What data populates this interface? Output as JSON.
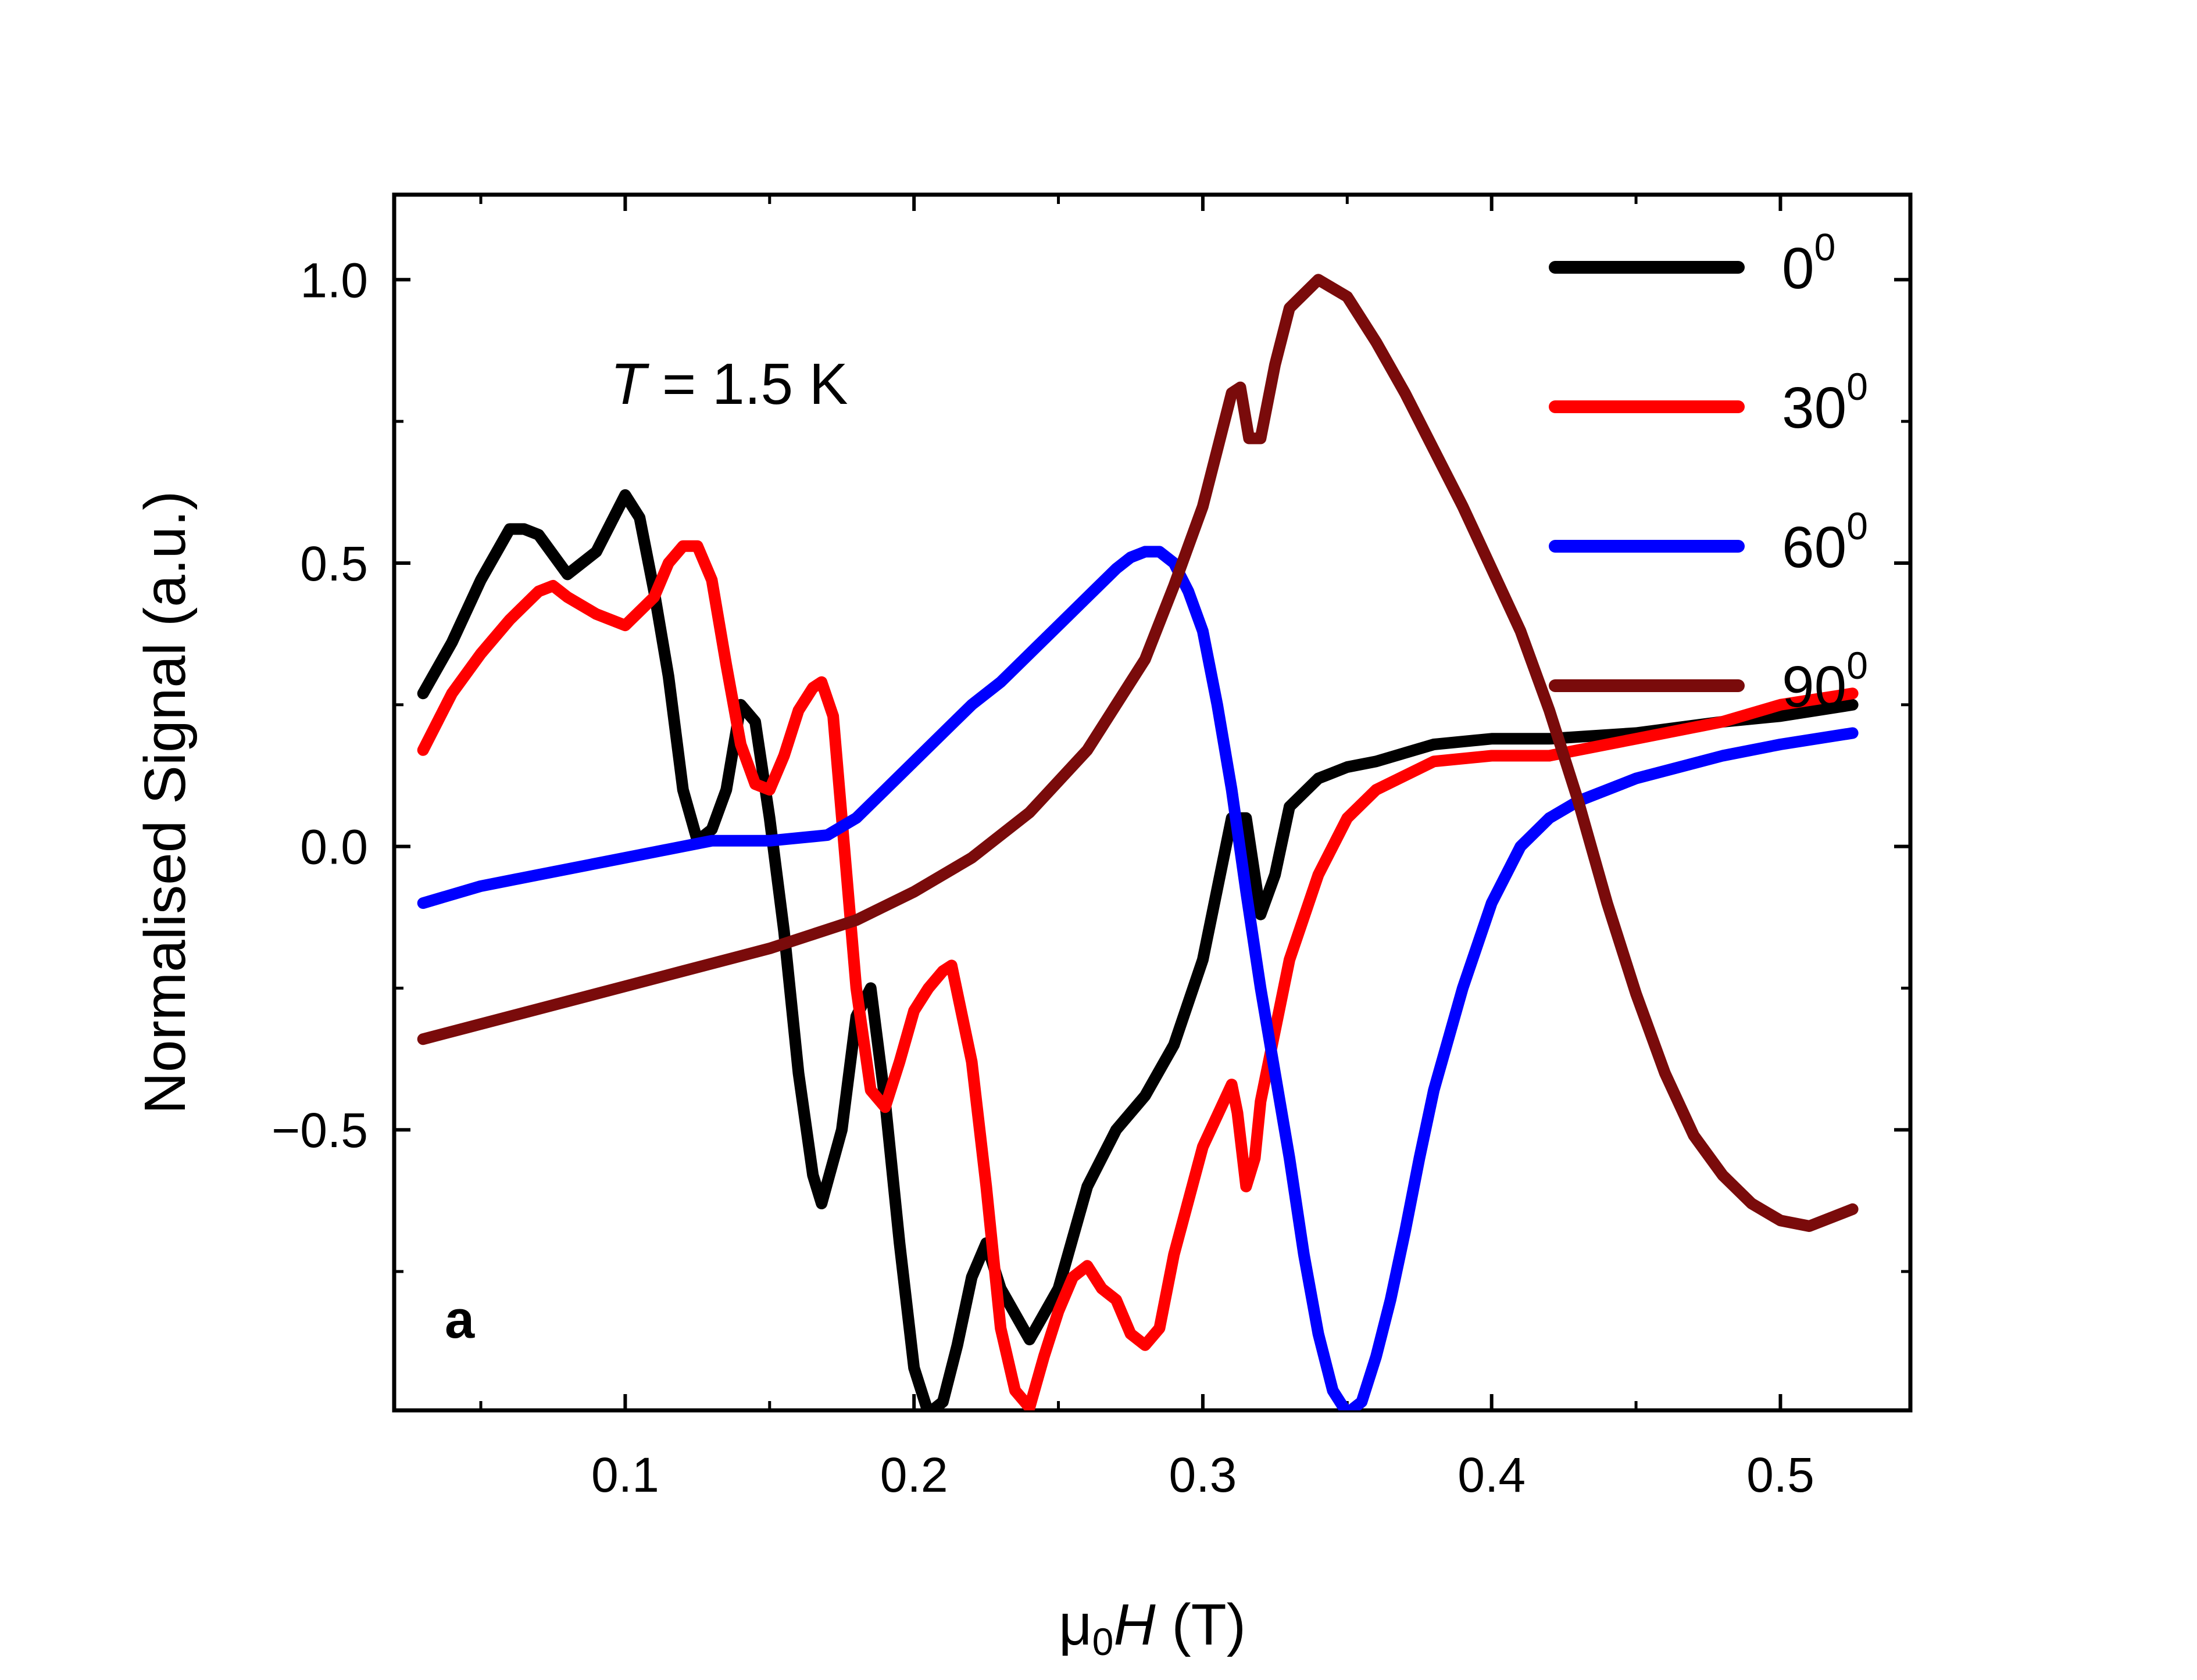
{
  "chart_data": {
    "type": "line",
    "xlabel_prefix": "μ",
    "xlabel_sub": "0",
    "xlabel_var": "H",
    "xlabel_unit": " (T)",
    "ylabel": "Normalised Signal (a.u.)",
    "xlim": [
      0.02,
      0.545
    ],
    "ylim": [
      -0.995,
      1.15
    ],
    "xticks": [
      0.1,
      0.2,
      0.3,
      0.4,
      0.5
    ],
    "xtick_labels": [
      "0.1",
      "0.2",
      "0.3",
      "0.4",
      "0.5"
    ],
    "yticks": [
      -0.5,
      0.0,
      0.5,
      1.0
    ],
    "ytick_labels": [
      "−0.5",
      "0.0",
      "0.5",
      "1.0"
    ],
    "annotation_var": "T",
    "annotation_value": " = 1.5 K",
    "panel_label": "a",
    "legend_position": "top-right",
    "series": [
      {
        "name": "0",
        "sup": "0",
        "color": "#000000",
        "x": [
          0.03,
          0.04,
          0.05,
          0.06,
          0.065,
          0.07,
          0.08,
          0.09,
          0.1,
          0.105,
          0.11,
          0.115,
          0.12,
          0.125,
          0.13,
          0.135,
          0.14,
          0.145,
          0.15,
          0.155,
          0.16,
          0.165,
          0.168,
          0.175,
          0.18,
          0.185,
          0.19,
          0.195,
          0.2,
          0.205,
          0.21,
          0.215,
          0.22,
          0.225,
          0.23,
          0.24,
          0.25,
          0.26,
          0.27,
          0.28,
          0.29,
          0.3,
          0.31,
          0.315,
          0.32,
          0.325,
          0.33,
          0.34,
          0.35,
          0.36,
          0.38,
          0.4,
          0.42,
          0.45,
          0.48,
          0.5,
          0.525
        ],
        "y": [
          0.27,
          0.36,
          0.47,
          0.56,
          0.56,
          0.55,
          0.48,
          0.52,
          0.62,
          0.58,
          0.45,
          0.3,
          0.1,
          0.01,
          0.03,
          0.1,
          0.25,
          0.22,
          0.05,
          -0.15,
          -0.4,
          -0.58,
          -0.63,
          -0.5,
          -0.3,
          -0.25,
          -0.45,
          -0.7,
          -0.92,
          -1.0,
          -0.98,
          -0.88,
          -0.76,
          -0.7,
          -0.78,
          -0.87,
          -0.78,
          -0.6,
          -0.5,
          -0.44,
          -0.35,
          -0.2,
          0.05,
          0.05,
          -0.12,
          -0.05,
          0.07,
          0.12,
          0.14,
          0.15,
          0.18,
          0.19,
          0.19,
          0.2,
          0.22,
          0.23,
          0.25
        ]
      },
      {
        "name": "30",
        "sup": "0",
        "color": "#ff0000",
        "x": [
          0.03,
          0.04,
          0.05,
          0.06,
          0.07,
          0.075,
          0.08,
          0.09,
          0.1,
          0.11,
          0.115,
          0.12,
          0.125,
          0.13,
          0.135,
          0.14,
          0.145,
          0.15,
          0.155,
          0.16,
          0.165,
          0.168,
          0.172,
          0.175,
          0.18,
          0.185,
          0.19,
          0.195,
          0.2,
          0.205,
          0.21,
          0.213,
          0.22,
          0.225,
          0.23,
          0.235,
          0.24,
          0.245,
          0.25,
          0.255,
          0.26,
          0.265,
          0.27,
          0.275,
          0.28,
          0.285,
          0.29,
          0.3,
          0.31,
          0.312,
          0.315,
          0.318,
          0.32,
          0.33,
          0.34,
          0.35,
          0.36,
          0.38,
          0.4,
          0.42,
          0.45,
          0.48,
          0.5,
          0.525
        ],
        "y": [
          0.17,
          0.27,
          0.34,
          0.4,
          0.45,
          0.46,
          0.44,
          0.41,
          0.39,
          0.44,
          0.5,
          0.53,
          0.53,
          0.47,
          0.32,
          0.18,
          0.11,
          0.1,
          0.16,
          0.24,
          0.28,
          0.29,
          0.23,
          0.05,
          -0.25,
          -0.43,
          -0.46,
          -0.38,
          -0.29,
          -0.25,
          -0.22,
          -0.21,
          -0.38,
          -0.6,
          -0.85,
          -0.96,
          -0.99,
          -0.9,
          -0.82,
          -0.76,
          -0.74,
          -0.78,
          -0.8,
          -0.86,
          -0.88,
          -0.85,
          -0.72,
          -0.53,
          -0.42,
          -0.47,
          -0.6,
          -0.55,
          -0.45,
          -0.2,
          -0.05,
          0.05,
          0.1,
          0.15,
          0.16,
          0.16,
          0.19,
          0.22,
          0.25,
          0.27
        ]
      },
      {
        "name": "60",
        "sup": "0",
        "color": "#0000ff",
        "x": [
          0.03,
          0.05,
          0.07,
          0.09,
          0.11,
          0.13,
          0.15,
          0.17,
          0.18,
          0.19,
          0.2,
          0.21,
          0.22,
          0.23,
          0.24,
          0.25,
          0.26,
          0.27,
          0.275,
          0.28,
          0.285,
          0.29,
          0.295,
          0.3,
          0.305,
          0.31,
          0.315,
          0.32,
          0.325,
          0.33,
          0.335,
          0.34,
          0.345,
          0.35,
          0.355,
          0.36,
          0.365,
          0.37,
          0.375,
          0.38,
          0.39,
          0.4,
          0.41,
          0.42,
          0.43,
          0.45,
          0.48,
          0.5,
          0.525
        ],
        "y": [
          -0.1,
          -0.07,
          -0.05,
          -0.03,
          -0.01,
          0.01,
          0.01,
          0.02,
          0.05,
          0.1,
          0.15,
          0.2,
          0.25,
          0.29,
          0.34,
          0.39,
          0.44,
          0.49,
          0.51,
          0.52,
          0.52,
          0.5,
          0.45,
          0.38,
          0.25,
          0.1,
          -0.08,
          -0.25,
          -0.4,
          -0.55,
          -0.72,
          -0.86,
          -0.96,
          -1.0,
          -0.98,
          -0.9,
          -0.8,
          -0.68,
          -0.55,
          -0.43,
          -0.25,
          -0.1,
          0.0,
          0.05,
          0.08,
          0.12,
          0.16,
          0.18,
          0.2
        ]
      },
      {
        "name": "90",
        "sup": "0",
        "color": "#7a0b0b",
        "x": [
          0.03,
          0.06,
          0.09,
          0.12,
          0.15,
          0.18,
          0.2,
          0.22,
          0.24,
          0.26,
          0.28,
          0.29,
          0.3,
          0.305,
          0.31,
          0.313,
          0.316,
          0.32,
          0.325,
          0.33,
          0.34,
          0.35,
          0.36,
          0.37,
          0.38,
          0.39,
          0.4,
          0.41,
          0.42,
          0.43,
          0.44,
          0.45,
          0.46,
          0.47,
          0.48,
          0.49,
          0.5,
          0.51,
          0.525
        ],
        "y": [
          -0.34,
          -0.3,
          -0.26,
          -0.22,
          -0.18,
          -0.13,
          -0.08,
          -0.02,
          0.06,
          0.17,
          0.33,
          0.46,
          0.6,
          0.7,
          0.8,
          0.81,
          0.72,
          0.72,
          0.85,
          0.95,
          1.0,
          0.97,
          0.89,
          0.8,
          0.7,
          0.6,
          0.49,
          0.38,
          0.24,
          0.08,
          -0.1,
          -0.26,
          -0.4,
          -0.51,
          -0.58,
          -0.63,
          -0.66,
          -0.67,
          -0.64
        ]
      }
    ]
  }
}
